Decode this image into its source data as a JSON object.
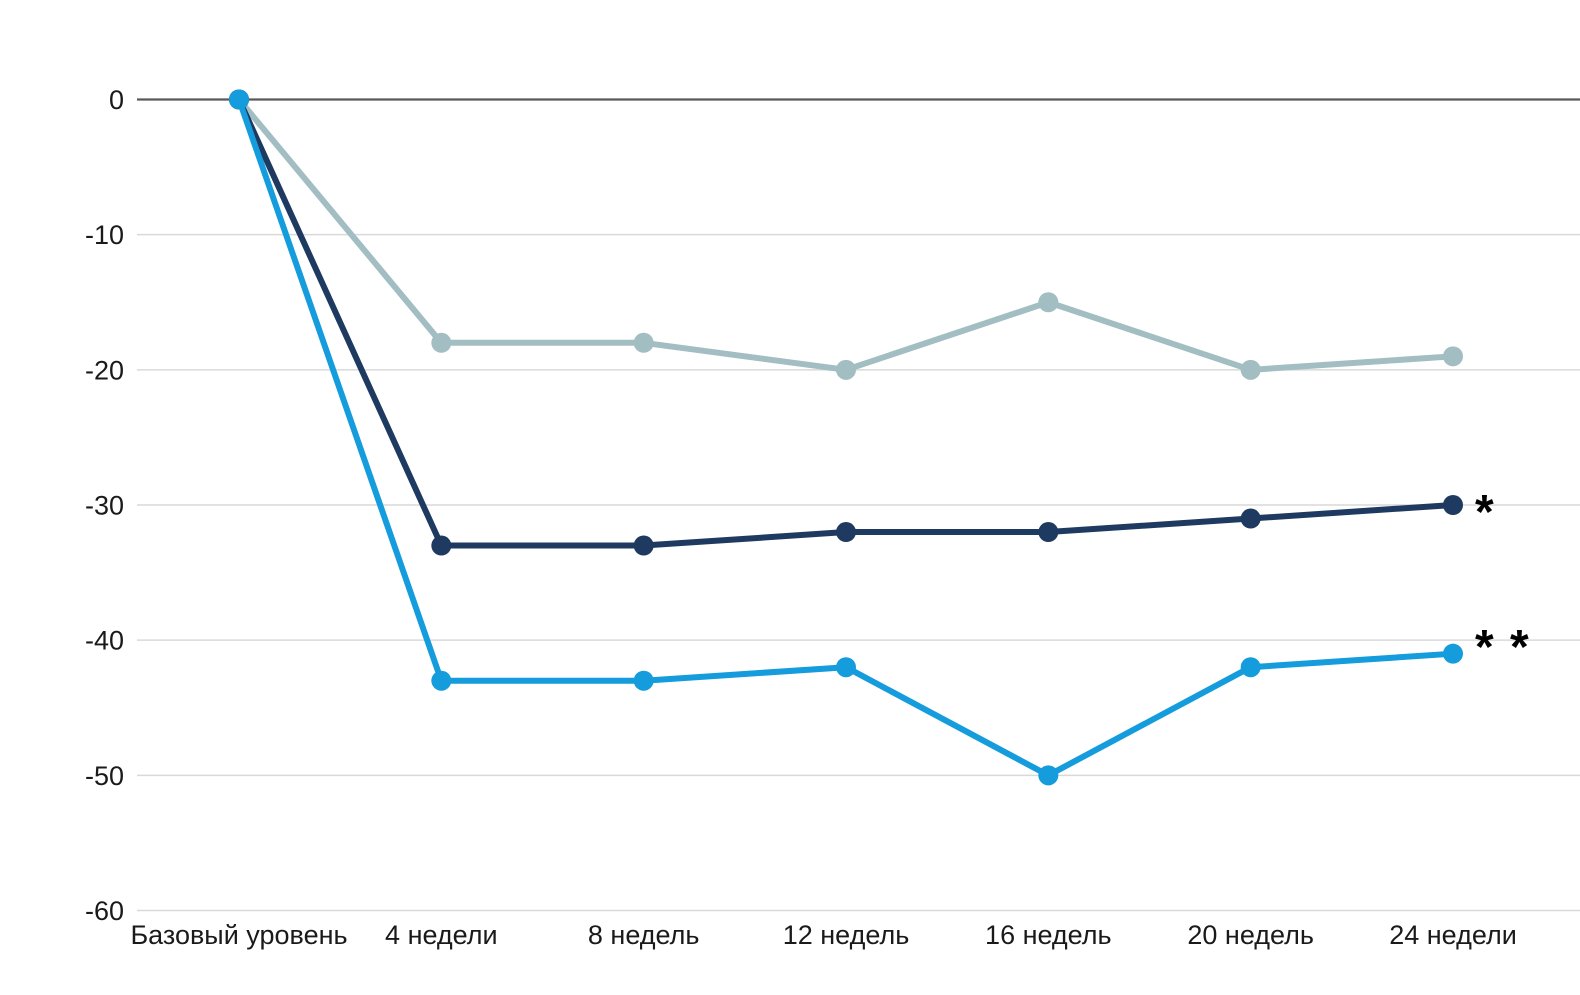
{
  "page": {
    "background_color": "#FFFFFF"
  },
  "chart_data": {
    "type": "line",
    "title": "",
    "xlabel": "",
    "ylabel": "",
    "categories": [
      "Базовый уровень",
      "4 недели",
      "8 недель",
      "12 недель",
      "16 недель",
      "20 недель",
      "24 недели"
    ],
    "series": [
      {
        "key": "light-gray-series",
        "color": "#A2BEC3",
        "values": [
          0,
          -18,
          -18,
          -20,
          -15,
          -20,
          -19
        ],
        "annotation": "",
        "annotation_y": null
      },
      {
        "key": "dark-navy-series",
        "color": "#1F3A60",
        "values": [
          0,
          -33,
          -33,
          -32,
          -32,
          -31,
          -30
        ],
        "annotation": "*",
        "annotation_y": -30
      },
      {
        "key": "bright-blue-series",
        "color": "#149CDC",
        "values": [
          0,
          -43,
          -43,
          -42,
          -50,
          -42,
          -41
        ],
        "annotation": "* *",
        "annotation_y": -40
      }
    ],
    "ylim": [
      -60,
      0
    ],
    "yticks": [
      0,
      -10,
      -20,
      -30,
      -40,
      -50,
      -60
    ],
    "grid": true,
    "legend": false,
    "marker": "circle",
    "axis_text_color": "#1A1A1A",
    "gridline_color": "#D9D9D9",
    "zero_line_color": "#58595B",
    "annotation_color": "#000000"
  }
}
